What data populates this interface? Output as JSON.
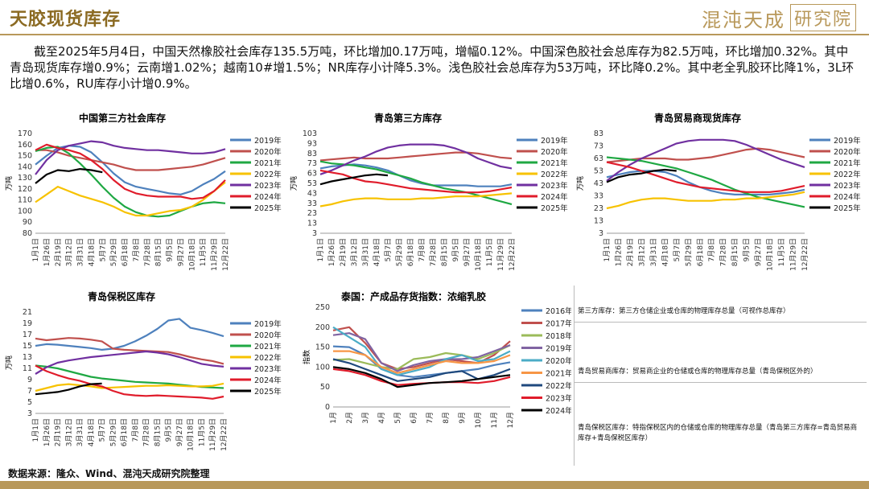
{
  "header": {
    "title": "天胶现货库存",
    "logo_text": "混沌天成",
    "logo_box": "研究院"
  },
  "summary": "截至2025年5月4日，中国天然橡胶社会库存135.5万吨，环比增加0.17万吨，增幅0.12%。中国深色胶社会总库存为82.5万吨，环比增加0.32%。其中青岛现货库存增0.9%；云南增1.02%；越南10#增1.5%；NR库存小计降5.3%。浅色胶社会总库存为53万吨，环比降0.2%。其中老全乳胶环比降1%，3L环比增0.6%，RU库存小计增0.9%。",
  "footer": {
    "source": "数据来源：隆众、Wind、混沌天成研究院整理"
  },
  "definitions": [
    "第三方库存：第三方仓储企业或仓库的物理库存总量（可视作总库存）",
    "青岛贸易商库存：贸易商企业的仓储或仓库的物理库存总量（青岛保税区外的）",
    "青岛保税区库存：特指保税区内的仓储或仓库的物理库存总量（青岛第三方库存=青岛贸易商库存+青岛保税区库存）"
  ],
  "colors": {
    "accent": "#b8985a",
    "title": "#8b6a22"
  },
  "chart_data": [
    {
      "id": "c1",
      "type": "line",
      "title": "中国第三方社会库存",
      "ylabel": "万吨",
      "ylim": [
        80,
        170
      ],
      "yticks": [
        80,
        90,
        100,
        110,
        120,
        130,
        140,
        150,
        160,
        170
      ],
      "xticks": [
        "1月1日",
        "1月26日",
        "2月19日",
        "3月12日",
        "3月31日",
        "4月18日",
        "5月7日",
        "5月29日",
        "6月18日",
        "7月8日",
        "7月28日",
        "8月15日",
        "9月5日",
        "9月27日",
        "10月18日",
        "11月5日",
        "11月29日",
        "12月22日"
      ],
      "series": [
        {
          "name": "2019年",
          "color": "#4e81bd",
          "values": [
            142,
            150,
            157,
            159,
            158,
            153,
            144,
            134,
            126,
            122,
            120,
            118,
            116,
            115,
            118,
            124,
            129,
            136
          ]
        },
        {
          "name": "2020年",
          "color": "#c0504d",
          "values": [
            155,
            155,
            153,
            150,
            148,
            146,
            144,
            142,
            139,
            137,
            137,
            137,
            138,
            139,
            140,
            142,
            145,
            148
          ]
        },
        {
          "name": "2021年",
          "color": "#1fa843",
          "values": [
            154,
            157,
            158,
            152,
            143,
            133,
            122,
            112,
            104,
            99,
            96,
            95,
            96,
            100,
            104,
            107,
            108,
            107
          ]
        },
        {
          "name": "2022年",
          "color": "#f7c200",
          "values": [
            108,
            115,
            122,
            118,
            114,
            111,
            108,
            104,
            99,
            96,
            96,
            98,
            100,
            101,
            104,
            110,
            118,
            126
          ]
        },
        {
          "name": "2023年",
          "color": "#7030a0",
          "values": [
            133,
            146,
            155,
            159,
            161,
            163,
            162,
            159,
            157,
            156,
            155,
            155,
            154,
            153,
            152,
            152,
            153,
            156
          ]
        },
        {
          "name": "2024年",
          "color": "#e01c2b",
          "values": [
            155,
            160,
            157,
            155,
            152,
            146,
            138,
            128,
            120,
            116,
            114,
            113,
            113,
            113,
            111,
            112,
            118,
            128
          ]
        },
        {
          "name": "2025年",
          "color": "#000000",
          "values": [
            125,
            133,
            137,
            136,
            138,
            137,
            135
          ]
        }
      ]
    },
    {
      "id": "c2",
      "type": "line",
      "title": "青岛第三方库存",
      "ylabel": "万吨",
      "ylim": [
        3,
        103
      ],
      "yticks": [
        3,
        13,
        23,
        33,
        43,
        53,
        63,
        73,
        83,
        93,
        103
      ],
      "xticks": [
        "1月1日",
        "1月26日",
        "2月19日",
        "3月12日",
        "3月31日",
        "4月18日",
        "5月7日",
        "5月29日",
        "6月18日",
        "7月8日",
        "7月28日",
        "8月15日",
        "9月5日",
        "9月27日",
        "10月18日",
        "11月5日",
        "11月29日",
        "12月22日"
      ],
      "series": [
        {
          "name": "2019年",
          "color": "#4e81bd",
          "values": [
            68,
            70,
            71,
            72,
            71,
            69,
            66,
            61,
            56,
            53,
            51,
            51,
            51,
            51,
            50,
            50,
            50,
            52
          ]
        },
        {
          "name": "2020年",
          "color": "#c0504d",
          "values": [
            76,
            77,
            78,
            79,
            78,
            78,
            78,
            79,
            80,
            81,
            82,
            83,
            84,
            84,
            83,
            81,
            79,
            78
          ]
        },
        {
          "name": "2021年",
          "color": "#1fa843",
          "values": [
            75,
            73,
            72,
            71,
            69,
            67,
            64,
            61,
            58,
            54,
            51,
            48,
            46,
            44,
            41,
            38,
            35,
            32
          ]
        },
        {
          "name": "2022年",
          "color": "#f7c200",
          "values": [
            30,
            32,
            35,
            37,
            38,
            38,
            37,
            37,
            37,
            38,
            38,
            39,
            40,
            40,
            40,
            41,
            42,
            43
          ]
        },
        {
          "name": "2023年",
          "color": "#7030a0",
          "values": [
            62,
            66,
            71,
            76,
            80,
            85,
            89,
            91,
            92,
            92,
            92,
            91,
            88,
            84,
            78,
            74,
            70,
            68
          ]
        },
        {
          "name": "2024年",
          "color": "#e01c2b",
          "values": [
            66,
            64,
            62,
            58,
            55,
            54,
            52,
            50,
            48,
            47,
            46,
            45,
            44,
            44,
            44,
            45,
            47,
            49
          ]
        },
        {
          "name": "2025年",
          "color": "#000000",
          "values": [
            52,
            55,
            57,
            59,
            61,
            62,
            61
          ]
        }
      ]
    },
    {
      "id": "c3",
      "type": "line",
      "title": "青岛贸易商现货库存",
      "ylabel": "万吨",
      "ylim": [
        3,
        83
      ],
      "yticks": [
        3,
        13,
        23,
        33,
        43,
        53,
        63,
        73,
        83
      ],
      "xticks": [
        "1月1日",
        "1月26日",
        "2月19日",
        "3月12日",
        "3月31日",
        "4月18日",
        "5月7日",
        "5月29日",
        "6月18日",
        "7月8日",
        "7月28日",
        "8月15日",
        "9月5日",
        "9月27日",
        "10月18日",
        "11月5日",
        "11月29日",
        "12月22日"
      ],
      "series": [
        {
          "name": "2019年",
          "color": "#4e81bd",
          "values": [
            48,
            50,
            52,
            53,
            53,
            52,
            49,
            44,
            40,
            37,
            35,
            34,
            34,
            34,
            34,
            35,
            36,
            38
          ]
        },
        {
          "name": "2020年",
          "color": "#c0504d",
          "values": [
            60,
            61,
            62,
            63,
            63,
            63,
            62,
            62,
            63,
            64,
            66,
            68,
            70,
            71,
            70,
            68,
            66,
            64
          ]
        },
        {
          "name": "2021年",
          "color": "#1fa843",
          "values": [
            64,
            63,
            62,
            61,
            59,
            57,
            55,
            52,
            49,
            46,
            42,
            38,
            35,
            32,
            30,
            28,
            26,
            24
          ]
        },
        {
          "name": "2022年",
          "color": "#f7c200",
          "values": [
            23,
            25,
            28,
            30,
            31,
            31,
            30,
            29,
            29,
            29,
            30,
            30,
            31,
            31,
            32,
            33,
            34,
            36
          ]
        },
        {
          "name": "2023年",
          "color": "#7030a0",
          "values": [
            45,
            52,
            58,
            63,
            67,
            71,
            75,
            77,
            78,
            78,
            78,
            77,
            74,
            70,
            66,
            62,
            59,
            56
          ]
        },
        {
          "name": "2024年",
          "color": "#e01c2b",
          "values": [
            60,
            58,
            56,
            53,
            50,
            47,
            44,
            42,
            40,
            39,
            38,
            37,
            36,
            36,
            36,
            37,
            39,
            41
          ]
        },
        {
          "name": "2025年",
          "color": "#000000",
          "values": [
            44,
            48,
            50,
            51,
            53,
            54,
            53
          ]
        }
      ]
    },
    {
      "id": "c4",
      "type": "line",
      "title": "青岛保税区库存",
      "ylabel": "万吨",
      "ylim": [
        3,
        21
      ],
      "yticks": [
        3,
        5,
        7,
        9,
        11,
        13,
        15,
        17,
        19,
        21
      ],
      "xticks": [
        "1月1日",
        "1月26日",
        "2月19日",
        "3月12日",
        "3月31日",
        "4月18日",
        "5月7日",
        "5月29日",
        "6月18日",
        "7月8日",
        "7月28日",
        "8月15日",
        "9月5日",
        "9月27日",
        "10月18日",
        "11月5日",
        "11月29日",
        "12月22日"
      ],
      "series": [
        {
          "name": "2019年",
          "color": "#4e81bd",
          "values": [
            15,
            15.3,
            15.2,
            15,
            14.8,
            14.6,
            14.3,
            14.5,
            15,
            15.8,
            16.8,
            18,
            19.5,
            19.8,
            18.2,
            17.8,
            17.3,
            16.7
          ]
        },
        {
          "name": "2020年",
          "color": "#c0504d",
          "values": [
            16.3,
            16,
            16.2,
            16.4,
            16.3,
            16.1,
            15.8,
            14.5,
            14.3,
            14.2,
            14.1,
            14,
            13.9,
            13.5,
            13,
            12.6,
            12.3,
            11.8
          ]
        },
        {
          "name": "2021年",
          "color": "#1fa843",
          "values": [
            11.5,
            11.3,
            11,
            10.5,
            10,
            9.5,
            9.2,
            9,
            8.8,
            8.6,
            8.5,
            8.4,
            8.3,
            8.1,
            7.9,
            7.7,
            7.6,
            7.5
          ]
        },
        {
          "name": "2022年",
          "color": "#f7c200",
          "values": [
            7,
            7.5,
            8,
            8.2,
            8,
            7.8,
            7.5,
            7.6,
            7.7,
            7.8,
            7.9,
            7.9,
            8,
            7.9,
            7.8,
            7.8,
            7.9,
            8.3
          ]
        },
        {
          "name": "2023年",
          "color": "#7030a0",
          "values": [
            10,
            11.2,
            12,
            12.4,
            12.7,
            13,
            13.2,
            13.4,
            13.6,
            13.8,
            14,
            13.8,
            13.5,
            13,
            12.4,
            11.8,
            11.5,
            11.3
          ]
        },
        {
          "name": "2024年",
          "color": "#e01c2b",
          "values": [
            11.5,
            10.5,
            9.8,
            9.2,
            8.8,
            8.2,
            7.8,
            7,
            6.4,
            6.2,
            6.1,
            6.2,
            6.1,
            6,
            5.9,
            5.8,
            5.6,
            6
          ]
        },
        {
          "name": "2025年",
          "color": "#000000",
          "values": [
            6.4,
            6.6,
            6.8,
            7.2,
            7.8,
            8.2,
            8.3
          ]
        }
      ]
    },
    {
      "id": "c5",
      "type": "line",
      "title": "泰国：产成品存货指数：浓缩乳胶",
      "ylabel": "指数",
      "ylim": [
        0,
        250
      ],
      "yticks": [
        0,
        50,
        100,
        150,
        200,
        250
      ],
      "xticks": [
        "1月",
        "2月",
        "3月",
        "4月",
        "5月",
        "6月",
        "7月",
        "8月",
        "9月",
        "10月",
        "11月",
        "12月"
      ],
      "series": [
        {
          "name": "2016年",
          "color": "#4e81bd",
          "values": [
            152,
            150,
            130,
            95,
            80,
            75,
            80,
            85,
            90,
            95,
            105,
            112
          ]
        },
        {
          "name": "2017年",
          "color": "#c0504d",
          "values": [
            192,
            200,
            160,
            110,
            95,
            100,
            110,
            120,
            115,
            110,
            130,
            165
          ]
        },
        {
          "name": "2018年",
          "color": "#9bbb59",
          "values": [
            118,
            120,
            110,
            100,
            95,
            120,
            125,
            135,
            130,
            120,
            135,
            155
          ]
        },
        {
          "name": "2019年",
          "color": "#8064a2",
          "values": [
            180,
            185,
            170,
            110,
            90,
            105,
            115,
            120,
            120,
            125,
            140,
            155
          ]
        },
        {
          "name": "2020年",
          "color": "#4bacc6",
          "values": [
            200,
            175,
            150,
            95,
            80,
            90,
            100,
            120,
            130,
            115,
            120,
            140
          ]
        },
        {
          "name": "2021年",
          "color": "#f79646",
          "values": [
            140,
            140,
            130,
            100,
            85,
            95,
            105,
            115,
            110,
            110,
            115,
            130
          ]
        },
        {
          "name": "2022年",
          "color": "#1f497d",
          "values": [
            120,
            110,
            95,
            80,
            65,
            70,
            75,
            85,
            90,
            70,
            80,
            95
          ]
        },
        {
          "name": "2023年",
          "color": "#e01c2b",
          "values": [
            95,
            90,
            80,
            65,
            55,
            58,
            60,
            62,
            62,
            60,
            65,
            75
          ]
        },
        {
          "name": "2024年",
          "color": "#000000",
          "values": [
            100,
            95,
            85,
            70,
            50,
            55,
            60,
            62,
            65,
            70,
            75,
            80
          ]
        }
      ]
    }
  ]
}
